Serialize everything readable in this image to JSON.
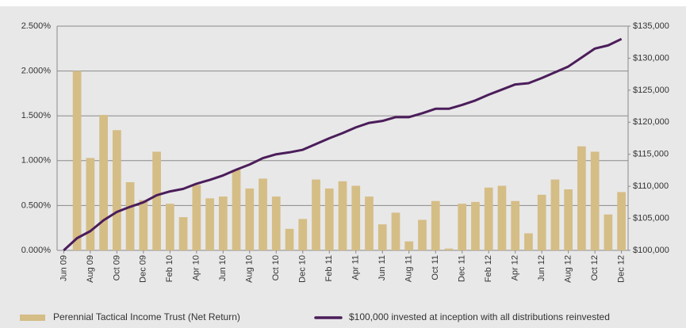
{
  "chart_data": {
    "type": "bar",
    "categories": [
      "Jun 09",
      null,
      "Aug 09",
      null,
      "Oct 09",
      null,
      "Dec 09",
      null,
      "Feb 10",
      null,
      "Apr 10",
      null,
      "Jun 10",
      null,
      "Aug 10",
      null,
      "Oct 10",
      null,
      "Dec 10",
      null,
      "Feb 11",
      null,
      "Apr 11",
      null,
      "Jun 11",
      null,
      "Aug 11",
      null,
      "Oct 11",
      null,
      "Dec 11",
      null,
      "Feb 12",
      null,
      "Apr 12",
      null,
      "Jun 12",
      null,
      "Aug 12",
      null,
      "Oct 12",
      null,
      "Dec 12"
    ],
    "series": [
      {
        "name": "Perennial Tactical Income Trust (Net Return)",
        "color": "#d5bd86",
        "type": "bar",
        "values": [
          null,
          2.0,
          1.03,
          1.51,
          1.34,
          0.76,
          0.56,
          1.1,
          0.52,
          0.37,
          0.73,
          0.58,
          0.6,
          0.9,
          0.69,
          0.8,
          0.6,
          0.24,
          0.35,
          0.79,
          0.69,
          0.77,
          0.72,
          0.6,
          0.29,
          0.42,
          0.1,
          0.34,
          0.55,
          0.02,
          0.52,
          0.54,
          0.7,
          0.72,
          0.55,
          0.19,
          0.62,
          0.79,
          0.68,
          1.16,
          1.1,
          0.4,
          0.65
        ]
      },
      {
        "name": "$100,000 invested at inception with all distributions reinvested",
        "color": "#4b1d5a",
        "type": "line",
        "axis": "y2",
        "values": [
          100000,
          101900,
          103000,
          104700,
          106000,
          106800,
          107500,
          108600,
          109200,
          109600,
          110400,
          111000,
          111700,
          112600,
          113400,
          114400,
          115000,
          115300,
          115700,
          116600,
          117500,
          118300,
          119200,
          119900,
          120200,
          120800,
          120800,
          121400,
          122100,
          122100,
          122700,
          123400,
          124300,
          125100,
          125900,
          126100,
          126900,
          127800,
          128700,
          130100,
          131500,
          132000,
          133000
        ]
      }
    ],
    "ylim": [
      0,
      2.5
    ],
    "yticks": [
      {
        "value": 0,
        "label": "0.000%"
      },
      {
        "value": 0.5,
        "label": "0.500%"
      },
      {
        "value": 1,
        "label": "1.000%"
      },
      {
        "value": 1.5,
        "label": "1.500%"
      },
      {
        "value": 2,
        "label": "2.000%"
      },
      {
        "value": 2.5,
        "label": "2.500%"
      }
    ],
    "y2lim": [
      100000,
      135000
    ],
    "y2ticks": [
      {
        "value": 100000,
        "label": "$100,000"
      },
      {
        "value": 105000,
        "label": "$105,000"
      },
      {
        "value": 110000,
        "label": "$110,000"
      },
      {
        "value": 115000,
        "label": "$115,000"
      },
      {
        "value": 120000,
        "label": "$120,000"
      },
      {
        "value": 125000,
        "label": "$125,000"
      },
      {
        "value": 130000,
        "label": "$130,000"
      },
      {
        "value": 135000,
        "label": "$135,000"
      }
    ],
    "grid": true,
    "legend": "bottom"
  }
}
